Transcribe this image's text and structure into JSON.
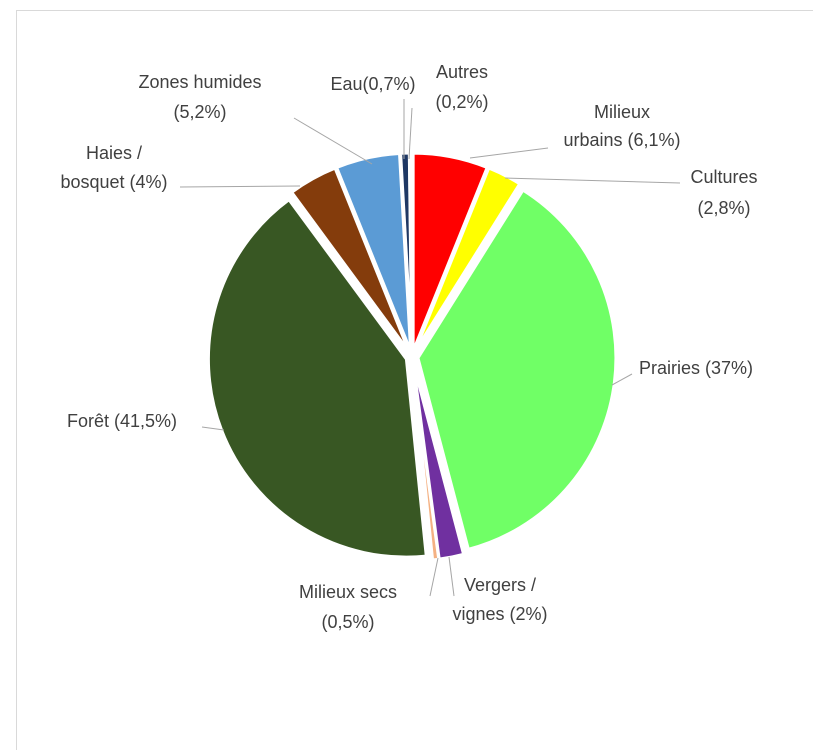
{
  "chart_data": {
    "type": "pie",
    "title": "",
    "start_angle_deg": 0,
    "direction": "clockwise",
    "slices": [
      {
        "label": "Milieux urbains (6,1%)",
        "label_lines": [
          "Milieux",
          "urbains (6,1%)"
        ],
        "value": 6.1,
        "color": "#ff0000"
      },
      {
        "label": "Cultures (2,8%)",
        "label_lines": [
          "Cultures",
          "(2,8%)"
        ],
        "value": 2.8,
        "color": "#ffff00"
      },
      {
        "label": "Prairies (37%)",
        "label_lines": [
          "Prairies (37%)"
        ],
        "value": 37,
        "color": "#70ff66"
      },
      {
        "label": "Vergers / vignes (2%)",
        "label_lines": [
          "Vergers /",
          "vignes (2%)"
        ],
        "value": 2,
        "color": "#7030a0"
      },
      {
        "label": "Milieux secs (0,5%)",
        "label_lines": [
          "Milieux secs",
          "(0,5%)"
        ],
        "value": 0.5,
        "color": "#f4b183"
      },
      {
        "label": "Forêt (41,5%)",
        "label_lines": [
          "Forêt (41,5%)"
        ],
        "value": 41.5,
        "color": "#385723"
      },
      {
        "label": "Haies / bosquet (4%)",
        "label_lines": [
          "Haies /",
          "bosquet (4%)"
        ],
        "value": 4,
        "color": "#843c0c"
      },
      {
        "label": "Zones humides (5,2%)",
        "label_lines": [
          "Zones humides",
          "(5,2%)"
        ],
        "value": 5.2,
        "color": "#5b9bd5"
      },
      {
        "label": "Eau (0,7%)",
        "label_lines": [
          "Eau(0,7%)"
        ],
        "value": 0.7,
        "color": "#1f3864"
      },
      {
        "label": "Autres (0,2%)",
        "label_lines": [
          "Autres",
          "(0,2%)"
        ],
        "value": 0.2,
        "color": "#bdd7ee"
      }
    ]
  }
}
